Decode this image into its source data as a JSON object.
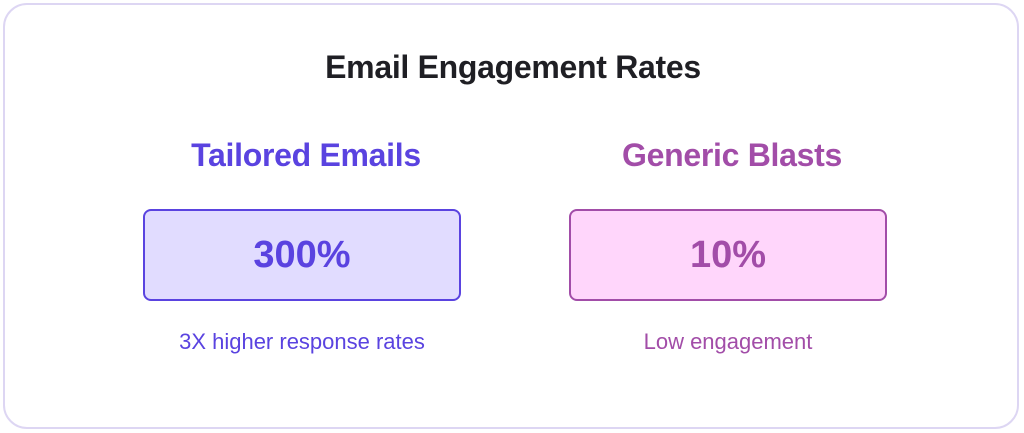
{
  "title": "Email Engagement Rates",
  "comparisons": [
    {
      "heading": "Tailored Emails",
      "value": "300%",
      "caption": "3X higher response rates",
      "accent_color": "#5a43e0",
      "fill_color": "#e1dcff"
    },
    {
      "heading": "Generic Blasts",
      "value": "10%",
      "caption": "Low engagement",
      "accent_color": "#a24da8",
      "fill_color": "#ffd6fb"
    }
  ]
}
